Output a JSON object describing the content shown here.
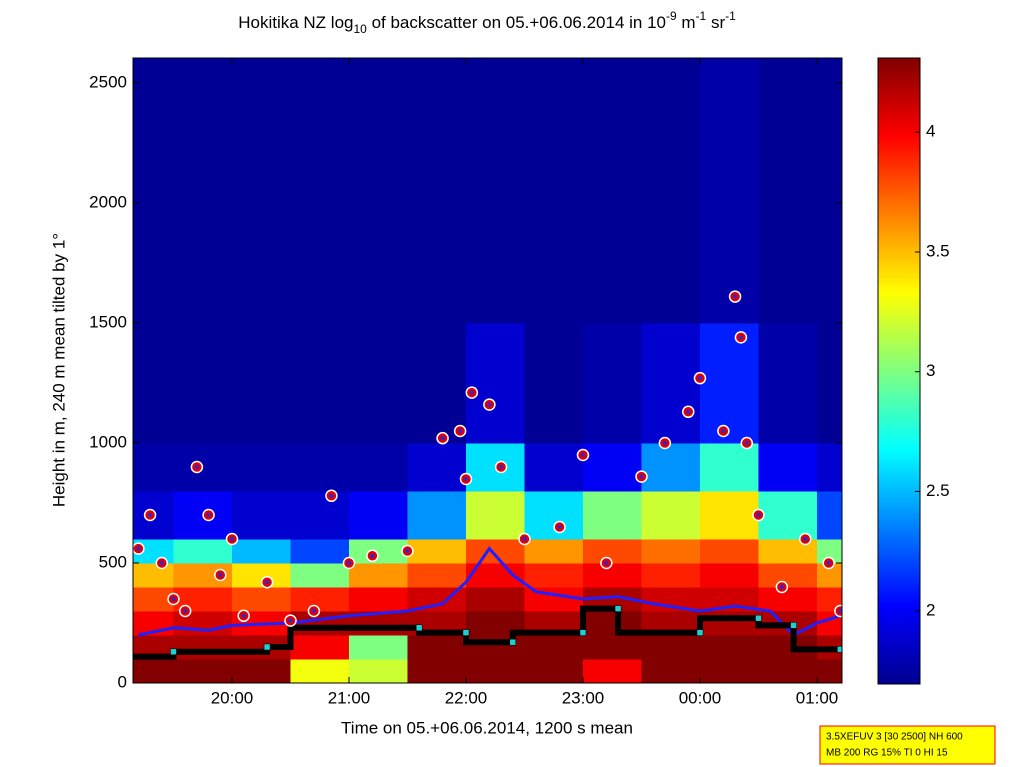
{
  "chart_data": {
    "type": "heatmap",
    "title": [
      "Hokitika NZ log",
      "10",
      " of backscatter on 05.+06.06.2014 in 10",
      "-9",
      " m",
      "-1",
      " sr",
      "-1"
    ],
    "title_styles": [
      "normal",
      "sub",
      "normal",
      "sup",
      "normal",
      "sup",
      "normal",
      "sup"
    ],
    "x_label": "Time on 05.+06.06.2014, 1200 s mean",
    "y_label": "Height in m, 240 m mean tilted by 1°",
    "xlim": [
      19.154,
      25.214
    ],
    "xticks": [
      {
        "value": 20,
        "label": "20:00"
      },
      {
        "value": 21,
        "label": "21:00"
      },
      {
        "value": 22,
        "label": "22:00"
      },
      {
        "value": 23,
        "label": "23:00"
      },
      {
        "value": 24,
        "label": "00:00"
      },
      {
        "value": 25,
        "label": "01:00"
      }
    ],
    "ylim": [
      0,
      2604
    ],
    "yticks": [
      0,
      500,
      1000,
      1500,
      2000,
      2500
    ],
    "colormap": "jet",
    "clim": [
      1.696,
      4.31
    ],
    "cticks": [
      2,
      2.5,
      3,
      3.5,
      4
    ],
    "x_edges": [
      19.154,
      19.5,
      20,
      20.5,
      21,
      21.5,
      22,
      22.5,
      23,
      23.5,
      24,
      24.5,
      25,
      25.214
    ],
    "y_edges": [
      0,
      100,
      200,
      300,
      400,
      500,
      600,
      800,
      1000,
      1500,
      2604
    ],
    "z": [
      [
        4.3,
        4.2,
        4.0,
        3.8,
        3.5,
        2.6,
        1.9,
        1.8,
        1.75,
        1.75
      ],
      [
        4.3,
        4.2,
        4.1,
        3.9,
        3.6,
        2.8,
        2.0,
        1.8,
        1.75,
        1.75
      ],
      [
        4.3,
        4.2,
        4.0,
        3.8,
        3.4,
        2.5,
        1.9,
        1.8,
        1.75,
        1.75
      ],
      [
        3.3,
        4.0,
        4.2,
        3.9,
        3.0,
        2.2,
        1.9,
        1.8,
        1.75,
        1.75
      ],
      [
        3.2,
        3.0,
        4.2,
        4.0,
        3.6,
        3.0,
        2.0,
        1.8,
        1.75,
        1.75
      ],
      [
        4.3,
        4.3,
        4.2,
        4.1,
        3.8,
        3.5,
        2.4,
        1.9,
        1.75,
        1.75
      ],
      [
        4.3,
        4.3,
        4.3,
        4.2,
        4.0,
        3.8,
        3.2,
        2.6,
        1.9,
        1.75
      ],
      [
        4.3,
        4.3,
        4.2,
        4.0,
        3.9,
        3.6,
        2.6,
        1.9,
        1.75,
        1.75
      ],
      [
        4.0,
        4.3,
        4.3,
        4.2,
        4.0,
        3.8,
        3.0,
        2.0,
        1.8,
        1.75
      ],
      [
        4.3,
        4.3,
        4.2,
        4.1,
        3.9,
        3.7,
        3.2,
        2.4,
        1.9,
        1.75
      ],
      [
        4.3,
        4.3,
        4.2,
        4.1,
        4.0,
        3.8,
        3.4,
        2.8,
        2.1,
        1.8
      ],
      [
        4.3,
        4.3,
        4.2,
        4.0,
        3.8,
        3.5,
        2.8,
        2.0,
        1.8,
        1.75
      ],
      [
        4.3,
        4.2,
        4.0,
        3.9,
        3.6,
        3.0,
        2.2,
        1.9,
        1.75,
        1.75
      ]
    ],
    "layer_line": {
      "color": "#000000",
      "x": [
        19.154,
        19.5,
        19.5,
        20.3,
        20.3,
        20.5,
        20.5,
        21.6,
        21.6,
        22.0,
        22.0,
        22.4,
        22.4,
        23.0,
        23.0,
        23.3,
        23.3,
        24.0,
        24.0,
        24.5,
        24.5,
        24.8,
        24.8,
        25.214
      ],
      "y": [
        110,
        110,
        130,
        130,
        150,
        150,
        230,
        230,
        210,
        210,
        170,
        170,
        210,
        210,
        310,
        310,
        210,
        210,
        270,
        270,
        240,
        240,
        140,
        140
      ]
    },
    "base_line": {
      "color": "#2020ff",
      "x": [
        19.2,
        19.5,
        19.8,
        20.0,
        20.5,
        21.0,
        21.5,
        21.8,
        22.0,
        22.2,
        22.4,
        22.6,
        23.0,
        23.3,
        23.6,
        24.0,
        24.3,
        24.6,
        24.8,
        25.0,
        25.2
      ],
      "y": [
        200,
        230,
        220,
        240,
        250,
        280,
        300,
        330,
        420,
        560,
        450,
        380,
        350,
        360,
        330,
        300,
        320,
        300,
        200,
        250,
        280
      ]
    },
    "squares": {
      "color": "#20d0d0",
      "x": [
        19.5,
        20.3,
        21.6,
        22.0,
        22.4,
        23.0,
        23.3,
        24.0,
        24.5,
        24.8,
        25.2
      ],
      "y": [
        130,
        150,
        230,
        210,
        170,
        210,
        310,
        210,
        270,
        240,
        140
      ]
    },
    "clouds": {
      "color": "#e00000",
      "edge": "#ffffff",
      "core": "#4020c0",
      "x": [
        19.2,
        19.3,
        19.4,
        19.5,
        19.6,
        19.7,
        19.8,
        19.9,
        20.0,
        20.1,
        20.3,
        20.5,
        20.7,
        20.85,
        21.0,
        21.2,
        21.5,
        21.8,
        21.95,
        22.0,
        22.05,
        22.2,
        22.3,
        22.5,
        22.8,
        23.0,
        23.2,
        23.5,
        23.7,
        23.9,
        24.0,
        24.2,
        24.3,
        24.35,
        24.4,
        24.5,
        24.7,
        24.9,
        25.1,
        25.2
      ],
      "y": [
        560,
        700,
        500,
        350,
        300,
        900,
        700,
        450,
        600,
        280,
        420,
        260,
        300,
        780,
        500,
        530,
        550,
        1020,
        1050,
        850,
        1210,
        1160,
        900,
        600,
        650,
        950,
        500,
        860,
        1000,
        1130,
        1270,
        1050,
        1610,
        1440,
        1000,
        700,
        400,
        600,
        500,
        300
      ]
    },
    "annotations": [
      "3.5XEFUV 3 [30 2500] NH 600",
      "MB 200 RG 15% TI 0 HI 15"
    ]
  }
}
